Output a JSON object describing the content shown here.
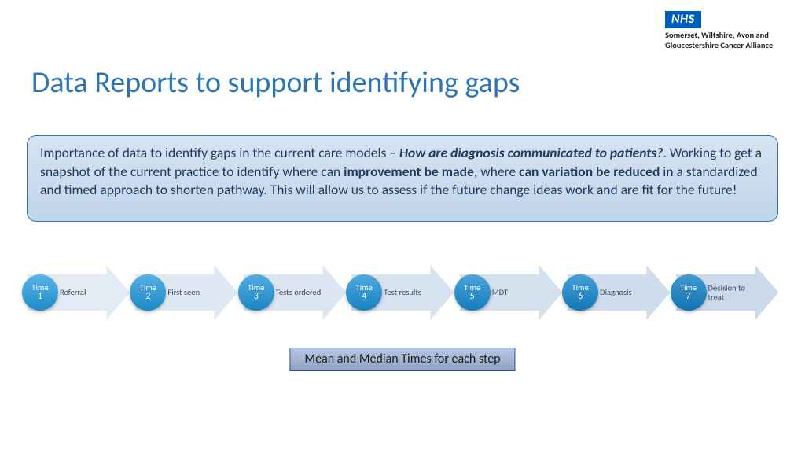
{
  "logo": {
    "badge": "NHS",
    "subtitle": "Somerset, Wiltshire, Avon and Gloucestershire Cancer Alliance",
    "badge_bg": "#005eb8",
    "badge_fg": "#ffffff"
  },
  "title": {
    "text": "Data Reports to support identifying gaps",
    "color": "#2e74b5",
    "fontsize": 38
  },
  "info_box": {
    "bg_top": "#d7e4f1",
    "bg_bottom": "#bfd4e9",
    "border": "#2e74b5",
    "text_color": "#1f3a5f",
    "fontsize": 17.5,
    "seg1": "Importance of data to identify gaps in the current care models – ",
    "em1": "How are diagnosis communicated to patients?",
    "seg2": ". Working to get a snapshot of the current practice to identify where can ",
    "strong1": "improvement be made",
    "seg3": ", where ",
    "strong2": "can variation be reduced",
    "seg4": " in a standardized and timed approach to shorten pathway. This will allow us to assess if the future change ideas work and are fit for the future!"
  },
  "timeline": {
    "circle_word": "Time",
    "label_color": "#3a4a5a",
    "label_fontsize": 10.5,
    "circle_text_color": "#ffffff",
    "steps": [
      {
        "num": "1",
        "label": "Referral",
        "arrow_fill": "#e3ecf5",
        "circle_top": "#5ab4e6",
        "circle_bottom": "#1f8cc8"
      },
      {
        "num": "2",
        "label": "First seen",
        "arrow_fill": "#dfe9f3",
        "circle_top": "#56b0e3",
        "circle_bottom": "#1d88c5"
      },
      {
        "num": "3",
        "label": "Tests ordered",
        "arrow_fill": "#dbe6f2",
        "circle_top": "#53ade1",
        "circle_bottom": "#1b85c2"
      },
      {
        "num": "4",
        "label": "Test results",
        "arrow_fill": "#d7e3f0",
        "circle_top": "#4fa9de",
        "circle_bottom": "#1981bf"
      },
      {
        "num": "5",
        "label": "MDT",
        "arrow_fill": "#d3e0ee",
        "circle_top": "#4aa4da",
        "circle_bottom": "#177cba"
      },
      {
        "num": "6",
        "label": "Diagnosis",
        "arrow_fill": "#cfdded",
        "circle_top": "#459fd6",
        "circle_bottom": "#1577b5"
      },
      {
        "num": "7",
        "label": "Decision to treat",
        "arrow_fill": "#cbdaeb",
        "circle_top": "#409ad2",
        "circle_bottom": "#1272b0"
      }
    ]
  },
  "caption": {
    "text": "Mean and Median Times for each step",
    "bg_top": "#b9c7de",
    "bg_bottom": "#8ea4c8",
    "border": "#2f4e85",
    "fontsize": 16
  }
}
